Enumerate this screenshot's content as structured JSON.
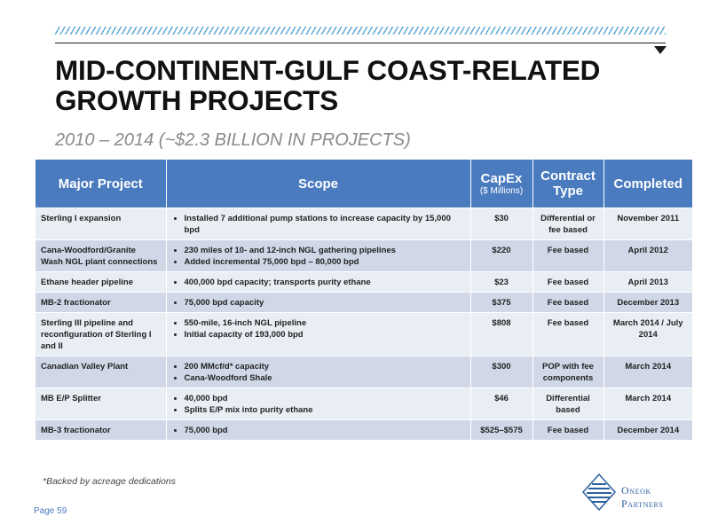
{
  "title_line1": "MID-CONTINENT-GULF COAST-RELATED",
  "title_line2": "GROWTH PROJECTS",
  "subtitle": "2010 – 2014 (~$2.3 BILLION IN PROJECTS)",
  "table": {
    "headers": {
      "project": "Major Project",
      "scope": "Scope",
      "capex": "CapEx",
      "capex_unit": "($ Millions)",
      "contract_line1": "Contract",
      "contract_line2": "Type",
      "completed": "Completed"
    },
    "rows": [
      {
        "project": "Sterling I expansion",
        "scope": [
          "Installed 7 additional pump stations to increase capacity by 15,000 bpd"
        ],
        "capex": "$30",
        "contract": "Differential or fee based",
        "completed": "November 2011"
      },
      {
        "project": "Cana-Woodford/Granite Wash NGL plant connections",
        "scope": [
          "230 miles of 10- and 12-inch NGL gathering pipelines",
          "Added incremental 75,000 bpd – 80,000 bpd"
        ],
        "capex": "$220",
        "contract": "Fee based",
        "completed": "April 2012"
      },
      {
        "project": "Ethane header pipeline",
        "scope": [
          "400,000 bpd capacity; transports purity ethane"
        ],
        "capex": "$23",
        "contract": "Fee based",
        "completed": "April 2013"
      },
      {
        "project": "MB-2 fractionator",
        "scope": [
          "75,000 bpd capacity"
        ],
        "capex": "$375",
        "contract": "Fee based",
        "completed": "December 2013"
      },
      {
        "project": "Sterling III pipeline and reconfiguration of Sterling I and II",
        "scope": [
          "550-mile, 16-inch NGL pipeline",
          "Initial capacity of 193,000 bpd"
        ],
        "capex": "$808",
        "contract": "Fee based",
        "completed": "March 2014 / July 2014"
      },
      {
        "project": "Canadian Valley Plant",
        "scope": [
          "200 MMcf/d* capacity",
          "Cana-Woodford Shale"
        ],
        "capex": "$300",
        "contract": "POP with fee components",
        "completed": "March 2014"
      },
      {
        "project": "MB E/P Splitter",
        "scope": [
          "40,000 bpd",
          "Splits E/P mix into purity ethane"
        ],
        "capex": "$46",
        "contract": "Differential based",
        "completed": "March 2014"
      },
      {
        "project": "MB-3 fractionator",
        "scope": [
          "75,000 bpd"
        ],
        "capex": "$525–$575",
        "contract": "Fee based",
        "completed": "December 2014"
      }
    ]
  },
  "footnote": "*Backed by acreage dedications",
  "page_label": "Page 59",
  "logo": {
    "line1": "Oneok",
    "line2": "Partners",
    "icon": "oneok-diamond-logo-icon"
  },
  "colors": {
    "header_blue": "#4a7bbf",
    "row_light": "#e9edf4",
    "row_dark": "#d0d8e8",
    "hatch": "#5aa6d6",
    "logo_blue": "#2b5f9e"
  }
}
